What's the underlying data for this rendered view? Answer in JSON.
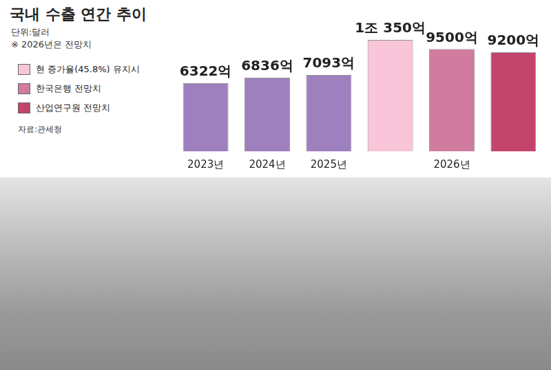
{
  "chart_data": {
    "type": "bar",
    "title": "국내 수출 연간 추이",
    "subtitle": "단위:달러",
    "annotations": [
      "※ 2026년은 전망치"
    ],
    "source": "자료:관세청",
    "categories": [
      "2023년",
      "2024년",
      "2025년",
      null,
      "2026년",
      null
    ],
    "values": [
      6322,
      6836,
      7093,
      10350,
      9500,
      9200
    ],
    "value_labels": [
      "6322억",
      "6836억",
      "7093억",
      "1조 350억",
      "9500억",
      "9200억"
    ],
    "colors": [
      "#9f80bf",
      "#9f80bf",
      "#9f80bf",
      "#f8c5d9",
      "#d17b9e",
      "#c4456c"
    ],
    "legend": "top-left",
    "legend_entries": [
      {
        "name": "현 증가율(45.8%) 유지시",
        "color": "#f8c5d9"
      },
      {
        "name": "한국은행 전망치",
        "color": "#d17b9e"
      },
      {
        "name": "산업연구원 전망치",
        "color": "#c4456c"
      }
    ],
    "ylim": [
      0,
      11500
    ],
    "grid": false,
    "data_labels": true,
    "tick_labels": "x"
  }
}
